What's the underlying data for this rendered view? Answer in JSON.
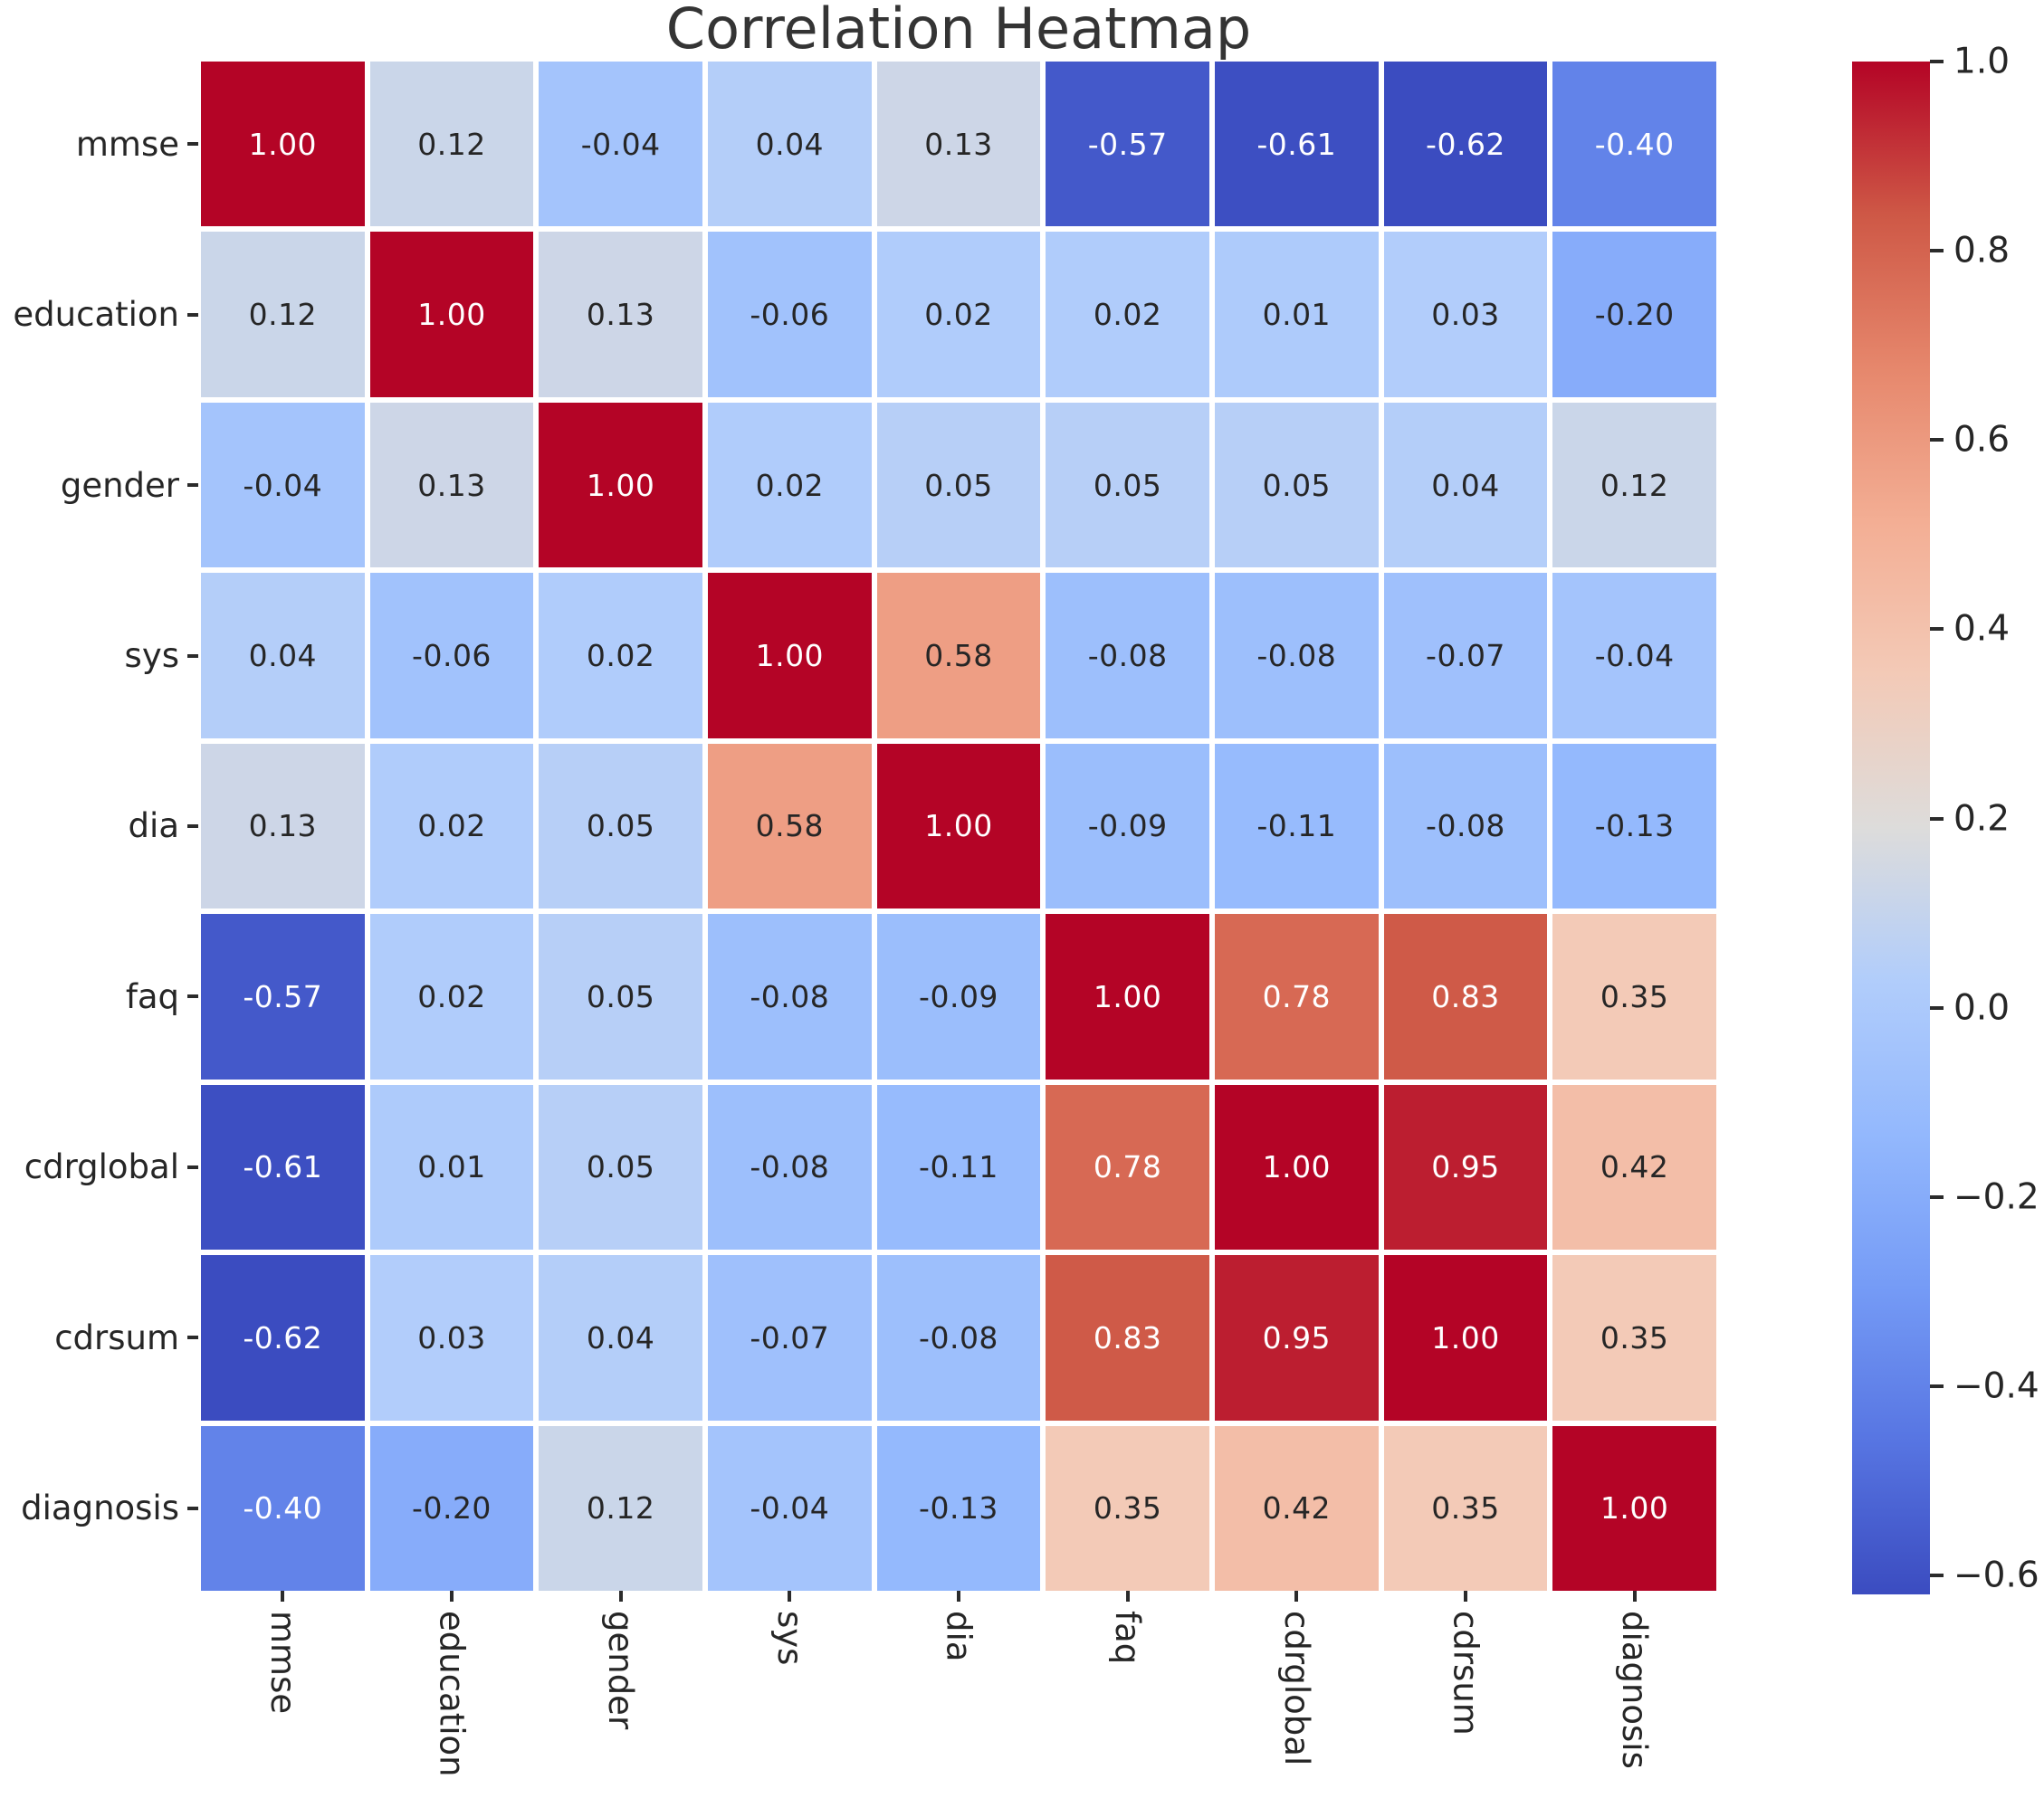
{
  "title": "Correlation Heatmap",
  "chart_data": {
    "type": "heatmap",
    "title": "Correlation Heatmap",
    "labels": [
      "mmse",
      "education",
      "gender",
      "sys",
      "dia",
      "faq",
      "cdrglobal",
      "cdrsum",
      "diagnosis"
    ],
    "matrix": [
      [
        1.0,
        0.12,
        -0.04,
        0.04,
        0.13,
        -0.57,
        -0.61,
        -0.62,
        -0.4
      ],
      [
        0.12,
        1.0,
        0.13,
        -0.06,
        0.02,
        0.02,
        0.01,
        0.03,
        -0.2
      ],
      [
        -0.04,
        0.13,
        1.0,
        0.02,
        0.05,
        0.05,
        0.05,
        0.04,
        0.12
      ],
      [
        0.04,
        -0.06,
        0.02,
        1.0,
        0.58,
        -0.08,
        -0.08,
        -0.07,
        -0.04
      ],
      [
        0.13,
        0.02,
        0.05,
        0.58,
        1.0,
        -0.09,
        -0.11,
        -0.08,
        -0.13
      ],
      [
        -0.57,
        0.02,
        0.05,
        -0.08,
        -0.09,
        1.0,
        0.78,
        0.83,
        0.35
      ],
      [
        -0.61,
        0.01,
        0.05,
        -0.08,
        -0.11,
        0.78,
        1.0,
        0.95,
        0.42
      ],
      [
        -0.62,
        0.03,
        0.04,
        -0.07,
        -0.08,
        0.83,
        0.95,
        1.0,
        0.35
      ],
      [
        -0.4,
        -0.2,
        0.12,
        -0.04,
        -0.13,
        0.35,
        0.42,
        0.35,
        1.0
      ]
    ],
    "annotation_decimals": 2,
    "vmin": -0.62,
    "vmax": 1.0,
    "colormap": "coolwarm",
    "colormap_stops": [
      {
        "t": 0.0,
        "hex": "#3b4cc0",
        "rgb": [
          59,
          76,
          192
        ]
      },
      {
        "t": 0.1,
        "hex": "#5775e2",
        "rgb": [
          87,
          117,
          226
        ]
      },
      {
        "t": 0.2,
        "hex": "#759bf6",
        "rgb": [
          117,
          155,
          246
        ]
      },
      {
        "t": 0.3,
        "hex": "#93b8fd",
        "rgb": [
          147,
          184,
          253
        ]
      },
      {
        "t": 0.4,
        "hex": "#b1cdfb",
        "rgb": [
          177,
          205,
          251
        ]
      },
      {
        "t": 0.5,
        "hex": "#dddcdb",
        "rgb": [
          221,
          220,
          219
        ]
      },
      {
        "t": 0.6,
        "hex": "#f3cab7",
        "rgb": [
          243,
          202,
          183
        ]
      },
      {
        "t": 0.7,
        "hex": "#f3ae94",
        "rgb": [
          243,
          174,
          148
        ]
      },
      {
        "t": 0.8,
        "hex": "#e6876c",
        "rgb": [
          230,
          135,
          108
        ]
      },
      {
        "t": 0.9,
        "hex": "#ce5846",
        "rgb": [
          206,
          88,
          70
        ]
      },
      {
        "t": 1.0,
        "hex": "#b40426",
        "rgb": [
          180,
          4,
          38
        ]
      }
    ],
    "colorbar_ticks": [
      {
        "value": 1.0,
        "label": "1.0"
      },
      {
        "value": 0.8,
        "label": "0.8"
      },
      {
        "value": 0.6,
        "label": "0.6"
      },
      {
        "value": 0.4,
        "label": "0.4"
      },
      {
        "value": 0.2,
        "label": "0.2"
      },
      {
        "value": 0.0,
        "label": "0.0"
      },
      {
        "value": -0.2,
        "label": "−0.2"
      },
      {
        "value": -0.4,
        "label": "−0.4"
      },
      {
        "value": -0.6,
        "label": "−0.6"
      }
    ],
    "colorbar_position": "right",
    "grid_gap_color": "#ffffff",
    "annotation_color_dark": "#262626",
    "annotation_color_light": "#ffffff",
    "tick_color": "#2b2b2b",
    "xlabel": "",
    "ylabel": ""
  }
}
